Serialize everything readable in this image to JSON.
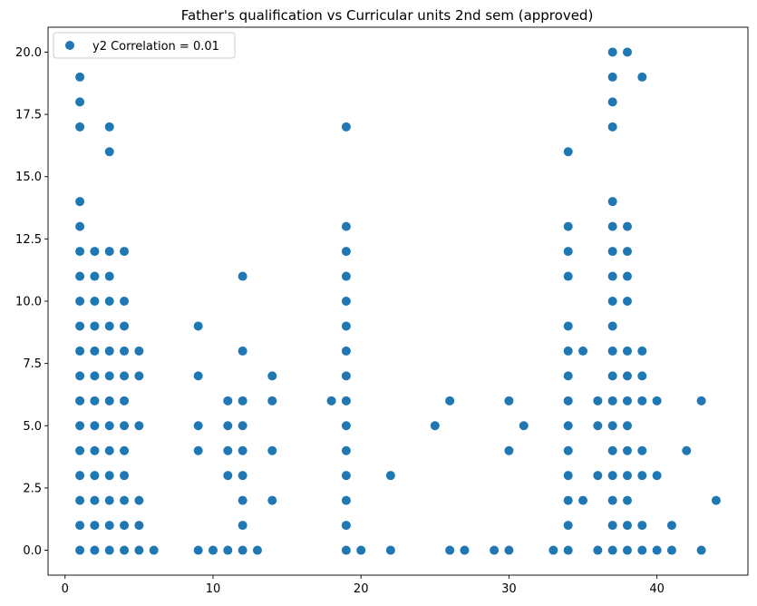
{
  "chart_data": {
    "type": "scatter",
    "title": "Father's qualification vs Curricular units 2nd sem (approved)",
    "xlabel": "",
    "ylabel": "",
    "xlim": [
      -1.15,
      46.15
    ],
    "ylim": [
      -1,
      21
    ],
    "x_ticks": [
      0,
      10,
      20,
      30,
      40
    ],
    "x_tick_labels": [
      "0",
      "10",
      "20",
      "30",
      "40"
    ],
    "y_ticks": [
      0,
      2.5,
      5,
      7.5,
      10,
      12.5,
      15,
      17.5,
      20
    ],
    "y_tick_labels": [
      "0.0",
      "2.5",
      "5.0",
      "7.5",
      "10.0",
      "12.5",
      "15.0",
      "17.5",
      "20.0"
    ],
    "legend": {
      "location": "upper-left",
      "entries": [
        "y2 Correlation = 0.01"
      ]
    },
    "colors": {
      "series": "#1f77b4"
    },
    "series": [
      {
        "name": "y2 Correlation = 0.01",
        "points": [
          [
            1,
            0
          ],
          [
            1,
            1
          ],
          [
            1,
            2
          ],
          [
            1,
            3
          ],
          [
            1,
            4
          ],
          [
            1,
            5
          ],
          [
            1,
            6
          ],
          [
            1,
            7
          ],
          [
            1,
            8
          ],
          [
            1,
            9
          ],
          [
            1,
            10
          ],
          [
            1,
            11
          ],
          [
            1,
            12
          ],
          [
            1,
            13
          ],
          [
            1,
            14
          ],
          [
            1,
            17
          ],
          [
            1,
            18
          ],
          [
            1,
            19
          ],
          [
            2,
            0
          ],
          [
            2,
            1
          ],
          [
            2,
            2
          ],
          [
            2,
            3
          ],
          [
            2,
            4
          ],
          [
            2,
            5
          ],
          [
            2,
            6
          ],
          [
            2,
            7
          ],
          [
            2,
            8
          ],
          [
            2,
            9
          ],
          [
            2,
            10
          ],
          [
            2,
            11
          ],
          [
            2,
            12
          ],
          [
            3,
            0
          ],
          [
            3,
            1
          ],
          [
            3,
            2
          ],
          [
            3,
            3
          ],
          [
            3,
            4
          ],
          [
            3,
            5
          ],
          [
            3,
            6
          ],
          [
            3,
            7
          ],
          [
            3,
            8
          ],
          [
            3,
            9
          ],
          [
            3,
            10
          ],
          [
            3,
            11
          ],
          [
            3,
            12
          ],
          [
            3,
            16
          ],
          [
            3,
            17
          ],
          [
            4,
            0
          ],
          [
            4,
            1
          ],
          [
            4,
            2
          ],
          [
            4,
            3
          ],
          [
            4,
            4
          ],
          [
            4,
            5
          ],
          [
            4,
            6
          ],
          [
            4,
            7
          ],
          [
            4,
            8
          ],
          [
            4,
            9
          ],
          [
            4,
            10
          ],
          [
            4,
            12
          ],
          [
            5,
            0
          ],
          [
            5,
            1
          ],
          [
            5,
            2
          ],
          [
            5,
            5
          ],
          [
            5,
            7
          ],
          [
            5,
            8
          ],
          [
            6,
            0
          ],
          [
            9,
            0
          ],
          [
            9,
            4
          ],
          [
            9,
            5
          ],
          [
            9,
            7
          ],
          [
            9,
            9
          ],
          [
            10,
            0
          ],
          [
            11,
            0
          ],
          [
            11,
            3
          ],
          [
            11,
            4
          ],
          [
            11,
            5
          ],
          [
            11,
            6
          ],
          [
            12,
            0
          ],
          [
            12,
            1
          ],
          [
            12,
            2
          ],
          [
            12,
            3
          ],
          [
            12,
            4
          ],
          [
            12,
            5
          ],
          [
            12,
            6
          ],
          [
            12,
            8
          ],
          [
            12,
            11
          ],
          [
            13,
            0
          ],
          [
            14,
            2
          ],
          [
            14,
            4
          ],
          [
            14,
            6
          ],
          [
            14,
            7
          ],
          [
            18,
            6
          ],
          [
            19,
            0
          ],
          [
            19,
            1
          ],
          [
            19,
            2
          ],
          [
            19,
            3
          ],
          [
            19,
            4
          ],
          [
            19,
            5
          ],
          [
            19,
            6
          ],
          [
            19,
            7
          ],
          [
            19,
            8
          ],
          [
            19,
            9
          ],
          [
            19,
            10
          ],
          [
            19,
            11
          ],
          [
            19,
            12
          ],
          [
            19,
            13
          ],
          [
            19,
            17
          ],
          [
            20,
            0
          ],
          [
            22,
            0
          ],
          [
            22,
            3
          ],
          [
            25,
            5
          ],
          [
            26,
            0
          ],
          [
            26,
            6
          ],
          [
            27,
            0
          ],
          [
            29,
            0
          ],
          [
            30,
            0
          ],
          [
            30,
            4
          ],
          [
            30,
            6
          ],
          [
            31,
            5
          ],
          [
            33,
            0
          ],
          [
            34,
            0
          ],
          [
            34,
            1
          ],
          [
            34,
            2
          ],
          [
            34,
            3
          ],
          [
            34,
            4
          ],
          [
            34,
            5
          ],
          [
            34,
            6
          ],
          [
            34,
            7
          ],
          [
            34,
            8
          ],
          [
            34,
            9
          ],
          [
            34,
            11
          ],
          [
            34,
            12
          ],
          [
            34,
            13
          ],
          [
            34,
            16
          ],
          [
            35,
            2
          ],
          [
            35,
            8
          ],
          [
            36,
            0
          ],
          [
            36,
            3
          ],
          [
            36,
            5
          ],
          [
            36,
            6
          ],
          [
            37,
            0
          ],
          [
            37,
            1
          ],
          [
            37,
            2
          ],
          [
            37,
            3
          ],
          [
            37,
            4
          ],
          [
            37,
            5
          ],
          [
            37,
            6
          ],
          [
            37,
            7
          ],
          [
            37,
            8
          ],
          [
            37,
            9
          ],
          [
            37,
            10
          ],
          [
            37,
            11
          ],
          [
            37,
            12
          ],
          [
            37,
            13
          ],
          [
            37,
            14
          ],
          [
            37,
            17
          ],
          [
            37,
            18
          ],
          [
            37,
            19
          ],
          [
            37,
            20
          ],
          [
            38,
            0
          ],
          [
            38,
            1
          ],
          [
            38,
            2
          ],
          [
            38,
            3
          ],
          [
            38,
            4
          ],
          [
            38,
            5
          ],
          [
            38,
            6
          ],
          [
            38,
            7
          ],
          [
            38,
            8
          ],
          [
            38,
            10
          ],
          [
            38,
            11
          ],
          [
            38,
            12
          ],
          [
            38,
            13
          ],
          [
            38,
            20
          ],
          [
            39,
            0
          ],
          [
            39,
            1
          ],
          [
            39,
            3
          ],
          [
            39,
            4
          ],
          [
            39,
            6
          ],
          [
            39,
            7
          ],
          [
            39,
            8
          ],
          [
            39,
            19
          ],
          [
            40,
            0
          ],
          [
            40,
            3
          ],
          [
            40,
            6
          ],
          [
            41,
            0
          ],
          [
            41,
            1
          ],
          [
            42,
            4
          ],
          [
            43,
            0
          ],
          [
            43,
            6
          ],
          [
            44,
            2
          ]
        ]
      }
    ]
  }
}
